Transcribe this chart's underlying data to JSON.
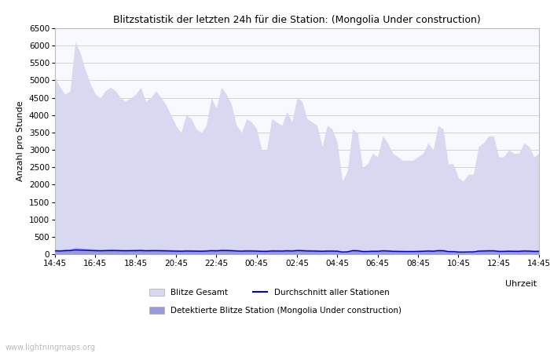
{
  "title": "Blitzstatistik der letzten 24h für die Station: (Mongolia Under construction)",
  "ylabel": "Anzahl pro Stunde",
  "xlabel": "Uhrzeit",
  "watermark": "www.lightningmaps.org",
  "x_labels": [
    "14:45",
    "16:45",
    "18:45",
    "20:45",
    "22:45",
    "00:45",
    "02:45",
    "04:45",
    "06:45",
    "08:45",
    "10:45",
    "12:45",
    "14:45"
  ],
  "ylim": [
    0,
    6500
  ],
  "yticks": [
    0,
    500,
    1000,
    1500,
    2000,
    2500,
    3000,
    3500,
    4000,
    4500,
    5000,
    5500,
    6000,
    6500
  ],
  "gesamt_color": "#d8d8f0",
  "station_color": "#9999dd",
  "avg_color": "#0000cc",
  "bg_color": "#f8f8ff",
  "grid_color": "#cccccc",
  "legend_labels": [
    "Blitze Gesamt",
    "Detektierte Blitze Station (Mongolia Under construction)",
    "Durchschnitt aller Stationen"
  ],
  "n_points": 97,
  "gesamt_y": [
    5100,
    4800,
    4600,
    4700,
    6100,
    5800,
    5300,
    4900,
    4600,
    4500,
    4700,
    4800,
    4700,
    4500,
    4400,
    4500,
    4600,
    4800,
    4400,
    4500,
    4700,
    4500,
    4300,
    4000,
    3700,
    3500,
    4000,
    3900,
    3600,
    3500,
    3700,
    4500,
    4200,
    4800,
    4600,
    4300,
    3700,
    3500,
    3900,
    3800,
    3600,
    3000,
    3000,
    3900,
    3800,
    3700,
    4100,
    3800,
    4500,
    4400,
    3900,
    3800,
    3700,
    3100,
    3700,
    3600,
    3200,
    2100,
    2400,
    3600,
    3500,
    2500,
    2600,
    2900,
    2800,
    3400,
    3200,
    2900,
    2800,
    2700,
    2700,
    2700,
    2800,
    2900,
    3200,
    3000,
    3700,
    3600,
    2600,
    2600,
    2200,
    2100,
    2300,
    2300,
    3100,
    3200,
    3400,
    3400,
    2800,
    2800,
    3000,
    2900,
    2900,
    3200,
    3100,
    2800,
    2900
  ],
  "station_y": [
    140,
    130,
    145,
    150,
    185,
    175,
    165,
    155,
    145,
    140,
    145,
    150,
    148,
    143,
    140,
    143,
    145,
    150,
    140,
    143,
    145,
    140,
    137,
    132,
    128,
    124,
    130,
    128,
    125,
    122,
    128,
    143,
    138,
    150,
    148,
    143,
    130,
    125,
    133,
    130,
    127,
    118,
    118,
    133,
    130,
    128,
    138,
    130,
    148,
    145,
    133,
    130,
    127,
    120,
    128,
    127,
    122,
    90,
    97,
    143,
    140,
    110,
    112,
    120,
    118,
    138,
    130,
    118,
    115,
    112,
    110,
    110,
    115,
    120,
    130,
    122,
    143,
    140,
    108,
    108,
    90,
    87,
    95,
    95,
    127,
    130,
    137,
    137,
    115,
    115,
    122,
    118,
    118,
    130,
    127,
    115,
    118
  ],
  "avg_y": [
    95,
    90,
    100,
    103,
    120,
    115,
    110,
    105,
    100,
    97,
    100,
    103,
    102,
    99,
    97,
    99,
    100,
    103,
    97,
    99,
    100,
    97,
    94,
    90,
    87,
    84,
    90,
    88,
    86,
    84,
    88,
    99,
    95,
    103,
    102,
    99,
    90,
    86,
    91,
    90,
    87,
    81,
    81,
    91,
    90,
    88,
    95,
    90,
    102,
    99,
    91,
    90,
    87,
    82,
    88,
    87,
    84,
    62,
    67,
    99,
    97,
    76,
    77,
    82,
    81,
    95,
    90,
    81,
    79,
    77,
    76,
    76,
    79,
    82,
    90,
    84,
    99,
    97,
    74,
    74,
    62,
    60,
    65,
    65,
    87,
    90,
    94,
    94,
    79,
    79,
    84,
    81,
    81,
    90,
    87,
    79,
    81
  ]
}
